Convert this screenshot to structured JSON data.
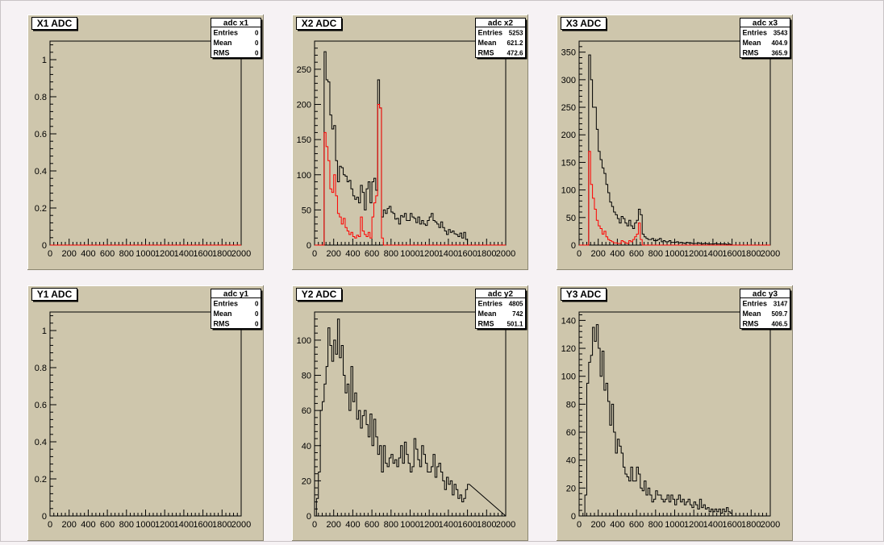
{
  "colors": {
    "panel_bg": "#cec6ac",
    "series_all": "#000000",
    "series_cut": "#ff0000"
  },
  "panels": [
    {
      "title": "X1 ADC",
      "stats": {
        "name": "adc x1",
        "rows": [
          [
            "Entries",
            "0"
          ],
          [
            "Mean",
            "0"
          ],
          [
            "RMS",
            "0"
          ]
        ]
      },
      "chart_data": {
        "type": "histogram",
        "xlim": [
          0,
          2000
        ],
        "ylim": [
          0,
          1.1
        ],
        "x_ticks": [
          "0",
          "200",
          "400",
          "600",
          "800",
          "1000",
          "1200",
          "1400",
          "1600",
          "1800",
          "2000"
        ],
        "x_tick_values": [
          0,
          200,
          400,
          600,
          800,
          1000,
          1200,
          1400,
          1600,
          1800,
          2000
        ],
        "y_ticks": [
          "0",
          "0.2",
          "0.4",
          "0.6",
          "0.8",
          "1"
        ],
        "y_tick_values": [
          0,
          0.2,
          0.4,
          0.6,
          0.8,
          1
        ],
        "bin_width": 20,
        "series": [
          {
            "color": "#000000",
            "values": []
          },
          {
            "color": "#ff0000",
            "values": []
          }
        ]
      }
    },
    {
      "title": "X2 ADC",
      "stats": {
        "name": "adc x2",
        "rows": [
          [
            "Entries",
            "5253"
          ],
          [
            "Mean",
            "621.2"
          ],
          [
            "RMS",
            "472.6"
          ]
        ]
      },
      "chart_data": {
        "type": "histogram",
        "xlim": [
          0,
          2000
        ],
        "ylim": [
          0,
          290
        ],
        "x_ticks": [
          "0",
          "200",
          "400",
          "600",
          "800",
          "1000",
          "1200",
          "1400",
          "1600",
          "1800",
          "2000"
        ],
        "x_tick_values": [
          0,
          200,
          400,
          600,
          800,
          1000,
          1200,
          1400,
          1600,
          1800,
          2000
        ],
        "y_ticks": [
          "0",
          "50",
          "100",
          "150",
          "200",
          "250"
        ],
        "y_tick_values": [
          0,
          50,
          100,
          150,
          200,
          250
        ],
        "bin_width": 20,
        "series": [
          {
            "color": "#000000",
            "values": [
              0,
              0,
              0,
              0,
              0,
              275,
              235,
              232,
              185,
              165,
              170,
              120,
              90,
              112,
              110,
              100,
              98,
              90,
              92,
              80,
              70,
              65,
              68,
              60,
              85,
              75,
              50,
              80,
              90,
              60,
              90,
              95,
              78,
              235,
              195,
              40,
              50,
              45,
              52,
              55,
              47,
              45,
              37,
              38,
              30,
              42,
              40,
              45,
              35,
              35,
              45,
              40,
              38,
              32,
              40,
              30,
              35,
              30,
              28,
              35,
              40,
              45,
              35,
              33,
              30,
              25,
              33,
              25,
              20,
              15,
              22,
              18,
              20,
              16,
              15,
              12,
              17,
              10,
              18,
              8,
              0
            ]
          },
          {
            "color": "#ff0000",
            "values": [
              0,
              0,
              0,
              0,
              0,
              160,
              140,
              120,
              80,
              75,
              100,
              70,
              45,
              40,
              30,
              38,
              25,
              20,
              15,
              18,
              12,
              10,
              14,
              12,
              40,
              20,
              15,
              12,
              18,
              10,
              40,
              60,
              70,
              200,
              195,
              10,
              0,
              0,
              0,
              0,
              0,
              0,
              0,
              0,
              0,
              0,
              0,
              0,
              0,
              0,
              0,
              0,
              0,
              0,
              0,
              0,
              0,
              0,
              0,
              0,
              0,
              0,
              0,
              0,
              0,
              0,
              0,
              0,
              0,
              0,
              0,
              0,
              0,
              0,
              0,
              0,
              0,
              0,
              0,
              0,
              0
            ]
          }
        ]
      }
    },
    {
      "title": "X3 ADC",
      "stats": {
        "name": "adc x3",
        "rows": [
          [
            "Entries",
            "3543"
          ],
          [
            "Mean",
            "404.9"
          ],
          [
            "RMS",
            "365.9"
          ]
        ]
      },
      "chart_data": {
        "type": "histogram",
        "xlim": [
          0,
          2000
        ],
        "ylim": [
          0,
          370
        ],
        "x_ticks": [
          "0",
          "200",
          "400",
          "600",
          "800",
          "1000",
          "1200",
          "1400",
          "1600",
          "1800",
          "2000"
        ],
        "x_tick_values": [
          0,
          200,
          400,
          600,
          800,
          1000,
          1200,
          1400,
          1600,
          1800,
          2000
        ],
        "y_ticks": [
          "0",
          "50",
          "100",
          "150",
          "200",
          "250",
          "300",
          "350"
        ],
        "y_tick_values": [
          0,
          50,
          100,
          150,
          200,
          250,
          300,
          350
        ],
        "bin_width": 20,
        "series": [
          {
            "color": "#000000",
            "values": [
              0,
              0,
              0,
              0,
              0,
              345,
              300,
              250,
              250,
              210,
              170,
              155,
              140,
              130,
              110,
              95,
              78,
              70,
              60,
              55,
              48,
              40,
              52,
              48,
              40,
              35,
              45,
              35,
              30,
              40,
              45,
              65,
              55,
              20,
              15,
              12,
              10,
              10,
              12,
              8,
              8,
              10,
              12,
              6,
              8,
              6,
              6,
              8,
              5,
              5,
              5,
              6,
              4,
              5,
              4,
              3,
              5,
              4,
              4,
              3,
              3,
              3,
              4,
              3,
              2,
              3,
              3,
              2,
              2,
              2,
              2,
              3,
              2,
              2,
              2,
              2,
              2,
              1,
              2,
              1,
              0
            ]
          },
          {
            "color": "#ff0000",
            "values": [
              0,
              0,
              0,
              0,
              0,
              170,
              110,
              85,
              65,
              45,
              35,
              30,
              20,
              25,
              15,
              10,
              8,
              6,
              4,
              4,
              3,
              3,
              8,
              6,
              4,
              3,
              8,
              6,
              10,
              15,
              20,
              40,
              10,
              0,
              0,
              0,
              0,
              0,
              0,
              0,
              0,
              0,
              0,
              0,
              0,
              0,
              0,
              0,
              0,
              0,
              0,
              0,
              0,
              0,
              0,
              0,
              0,
              0,
              0,
              0,
              0,
              0,
              0,
              0,
              0,
              0,
              0,
              0,
              0,
              0,
              0,
              0,
              0,
              0,
              0,
              0,
              0,
              0,
              0,
              0,
              0
            ]
          }
        ]
      }
    },
    {
      "title": "Y1 ADC",
      "stats": {
        "name": "adc y1",
        "rows": [
          [
            "Entries",
            "0"
          ],
          [
            "Mean",
            "0"
          ],
          [
            "RMS",
            "0"
          ]
        ]
      },
      "chart_data": {
        "type": "histogram",
        "xlim": [
          0,
          2000
        ],
        "ylim": [
          0,
          1.1
        ],
        "x_ticks": [
          "0",
          "200",
          "400",
          "600",
          "800",
          "1000",
          "1200",
          "1400",
          "1600",
          "1800",
          "2000"
        ],
        "x_tick_values": [
          0,
          200,
          400,
          600,
          800,
          1000,
          1200,
          1400,
          1600,
          1800,
          2000
        ],
        "y_ticks": [
          "0",
          "0.2",
          "0.4",
          "0.6",
          "0.8",
          "1"
        ],
        "y_tick_values": [
          0,
          0.2,
          0.4,
          0.6,
          0.8,
          1
        ],
        "bin_width": 20,
        "series": [
          {
            "color": "#000000",
            "values": []
          }
        ]
      }
    },
    {
      "title": "Y2 ADC",
      "stats": {
        "name": "adc y2",
        "rows": [
          [
            "Entries",
            "4805"
          ],
          [
            "Mean",
            "742"
          ],
          [
            "RMS",
            "501.1"
          ]
        ]
      },
      "chart_data": {
        "type": "histogram",
        "xlim": [
          0,
          2000
        ],
        "ylim": [
          0,
          116
        ],
        "x_ticks": [
          "0",
          "200",
          "400",
          "600",
          "800",
          "1000",
          "1200",
          "1400",
          "1600",
          "1800",
          "2000"
        ],
        "x_tick_values": [
          0,
          200,
          400,
          600,
          800,
          1000,
          1200,
          1400,
          1600,
          1800,
          2000
        ],
        "y_ticks": [
          "0",
          "20",
          "40",
          "60",
          "80",
          "100"
        ],
        "y_tick_values": [
          0,
          20,
          40,
          60,
          80,
          100
        ],
        "bin_width": 20,
        "series": [
          {
            "color": "#000000",
            "values": [
              0,
              10,
              25,
              60,
              65,
              75,
              85,
              107,
              97,
              88,
              100,
              92,
              112,
              90,
              97,
              80,
              70,
              75,
              60,
              85,
              65,
              70,
              55,
              60,
              50,
              57,
              60,
              52,
              45,
              58,
              40,
              55,
              45,
              35,
              40,
              25,
              40,
              30,
              28,
              33,
              35,
              30,
              32,
              28,
              33,
              40,
              30,
              42,
              35,
              30,
              25,
              28,
              44,
              38,
              32,
              28,
              40,
              35,
              30,
              25,
              25,
              28,
              35,
              22,
              28,
              30,
              25,
              20,
              15,
              22,
              18,
              20,
              12,
              18,
              15,
              10,
              12,
              8,
              10,
              15,
              18
            ]
          }
        ]
      }
    },
    {
      "title": "Y3 ADC",
      "stats": {
        "name": "adc y3",
        "rows": [
          [
            "Entries",
            "3147"
          ],
          [
            "Mean",
            "509.7"
          ],
          [
            "RMS",
            "406.5"
          ]
        ]
      },
      "chart_data": {
        "type": "histogram",
        "xlim": [
          0,
          2000
        ],
        "ylim": [
          0,
          146
        ],
        "x_ticks": [
          "0",
          "200",
          "400",
          "600",
          "800",
          "1000",
          "1200",
          "1400",
          "1600",
          "1800",
          "2000"
        ],
        "x_tick_values": [
          0,
          200,
          400,
          600,
          800,
          1000,
          1200,
          1400,
          1600,
          1800,
          2000
        ],
        "y_ticks": [
          "0",
          "20",
          "40",
          "60",
          "80",
          "100",
          "120",
          "140"
        ],
        "y_tick_values": [
          0,
          20,
          40,
          60,
          80,
          100,
          120,
          140
        ],
        "bin_width": 20,
        "series": [
          {
            "color": "#000000",
            "values": [
              0,
              0,
              0,
              15,
              95,
              110,
              115,
              135,
              125,
              137,
              120,
              100,
              118,
              90,
              95,
              82,
              65,
              80,
              60,
              45,
              55,
              50,
              45,
              35,
              30,
              28,
              25,
              35,
              25,
              25,
              35,
              30,
              20,
              18,
              25,
              15,
              20,
              15,
              10,
              12,
              18,
              15,
              15,
              12,
              10,
              12,
              15,
              10,
              15,
              12,
              8,
              12,
              15,
              10,
              12,
              8,
              10,
              12,
              8,
              6,
              10,
              8,
              5,
              12,
              6,
              8,
              5,
              6,
              3,
              5,
              3,
              5,
              3,
              5,
              2,
              5,
              3,
              6,
              3,
              2,
              0
            ]
          }
        ]
      }
    }
  ]
}
